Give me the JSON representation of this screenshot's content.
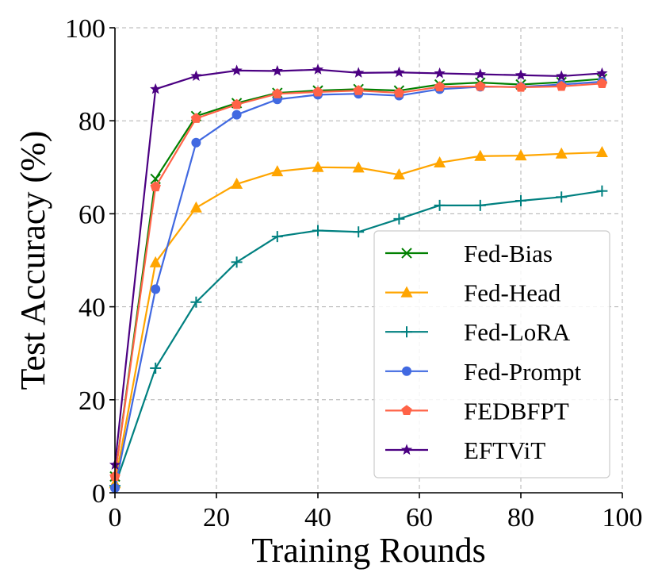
{
  "chart_data": {
    "type": "line",
    "xlabel": "Training Rounds",
    "ylabel": "Test Accuracy (%)",
    "xlim": [
      0,
      100
    ],
    "ylim": [
      0,
      100
    ],
    "x_ticks": [
      "0",
      "20",
      "40",
      "60",
      "80",
      "100"
    ],
    "y_ticks": [
      "0",
      "20",
      "40",
      "60",
      "80",
      "100"
    ],
    "grid": true,
    "legend_position": "lower-right",
    "x": [
      0,
      8,
      16,
      24,
      32,
      40,
      48,
      56,
      64,
      72,
      80,
      88,
      96
    ],
    "series": [
      {
        "name": "Fed-Bias",
        "color": "#008000",
        "marker": "x",
        "values": [
          3.5,
          67.5,
          81.0,
          83.8,
          86.0,
          86.5,
          86.8,
          86.5,
          87.8,
          88.2,
          87.8,
          88.3,
          89.0
        ]
      },
      {
        "name": "Fed-Head",
        "color": "#FFA500",
        "marker": "triangle",
        "values": [
          2.0,
          49.5,
          61.3,
          66.4,
          69.1,
          70.0,
          69.9,
          68.4,
          71.0,
          72.4,
          72.5,
          72.9,
          73.2
        ]
      },
      {
        "name": "Fed-LoRA",
        "color": "#008080",
        "marker": "plus",
        "values": [
          1.5,
          26.8,
          41.0,
          49.6,
          55.1,
          56.4,
          56.1,
          58.9,
          61.8,
          61.8,
          62.8,
          63.6,
          64.9
        ]
      },
      {
        "name": "Fed-Prompt",
        "color": "#4169E1",
        "marker": "circle",
        "values": [
          1.0,
          43.8,
          75.3,
          81.3,
          84.6,
          85.6,
          85.8,
          85.4,
          86.8,
          87.3,
          87.3,
          87.8,
          88.4
        ]
      },
      {
        "name": "FEDBFPT",
        "color": "#FF6347",
        "marker": "pentagon",
        "values": [
          3.5,
          65.8,
          80.5,
          83.5,
          85.8,
          86.2,
          86.5,
          86.0,
          87.3,
          87.4,
          87.2,
          87.4,
          88.0
        ]
      },
      {
        "name": "EFTViT",
        "color": "#4B0082",
        "marker": "star",
        "values": [
          6.0,
          86.8,
          89.6,
          90.8,
          90.7,
          91.0,
          90.3,
          90.4,
          90.2,
          90.0,
          89.8,
          89.6,
          90.2
        ]
      }
    ]
  }
}
